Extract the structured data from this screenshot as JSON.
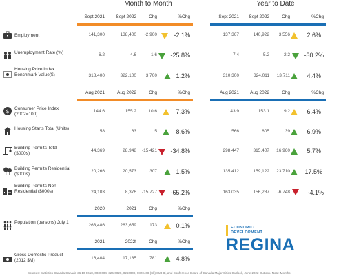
{
  "sections": {
    "month_title": "Month to Month",
    "year_title": "Year to Date"
  },
  "colors": {
    "orange": "#f28c28",
    "blue": "#1a6fb5",
    "green": "#4aa23c",
    "red": "#c8202c",
    "yellow": "#f2c12e"
  },
  "headers": {
    "h1": {
      "m1": "Sept 2021",
      "m2": "Sept 2022",
      "chg": "Chg",
      "pct": "%Chg",
      "y1": "Sept 2021",
      "y2": "Sept 2022",
      "ychg": "Chg",
      "ypct": "%Chg"
    },
    "h2": {
      "m1": "Aug 2021",
      "m2": "Aug 2022",
      "chg": "Chg",
      "pct": "%Chg",
      "y1": "Aug 2021",
      "y2": "Aug 2022",
      "ychg": "Chg",
      "ypct": "%Chg"
    },
    "h3": {
      "m1": "2020",
      "m2": "2021",
      "chg": "Chg",
      "pct": "%Chg"
    },
    "h4": {
      "m1": "2021",
      "m2": "2022f",
      "chg": "Chg",
      "pct": "%Chg"
    }
  },
  "rows": [
    {
      "label": "Employment",
      "icon": "briefcase-icon",
      "m": [
        "141,300",
        "138,400",
        "-2,900",
        "-2.1%"
      ],
      "m_arrow": "down-yellow",
      "y": [
        "137,367",
        "140,922",
        "3,556",
        "2.6%"
      ],
      "y_arrow": "up-yellow"
    },
    {
      "label": "Unemployment Rate (%)",
      "icon": "people-icon",
      "m": [
        "6.2",
        "4.6",
        "-1.6",
        "-25.8%"
      ],
      "m_arrow": "down-green",
      "y": [
        "7.4",
        "5.2",
        "-2.2",
        "-30.2%"
      ],
      "y_arrow": "down-green"
    },
    {
      "label": "Housing Price Index Benchmark Value($)",
      "icon": "cash-icon",
      "m": [
        "318,400",
        "322,100",
        "3,700",
        "1.2%"
      ],
      "m_arrow": "up-green",
      "y": [
        "310,300",
        "324,011",
        "13,711",
        "4.4%"
      ],
      "y_arrow": "up-green"
    },
    {
      "label": "Consumer Price Index (2002=100)",
      "icon": "dollar-coin-icon",
      "m": [
        "144.6",
        "155.2",
        "10.6",
        "7.3%"
      ],
      "m_arrow": "up-yellow",
      "y": [
        "143.9",
        "153.1",
        "9.2",
        "6.4%"
      ],
      "y_arrow": "up-yellow"
    },
    {
      "label": "Housing Starts Total (Units)",
      "icon": "house-icon",
      "m": [
        "58",
        "63",
        "5",
        "8.6%"
      ],
      "m_arrow": "up-green",
      "y": [
        "566",
        "605",
        "39",
        "6.9%"
      ],
      "y_arrow": "up-green"
    },
    {
      "label": "Building Permits Total ($000s)",
      "icon": "crane-icon",
      "m": [
        "44,369",
        "28,948",
        "-15,421",
        "-34.8%"
      ],
      "m_arrow": "down-red",
      "y": [
        "298,447",
        "315,407",
        "16,960",
        "5.7%"
      ],
      "y_arrow": "up-green"
    },
    {
      "label": "Building Permits Residential ($000s)",
      "icon": "trees-icon",
      "m": [
        "20,266",
        "20,573",
        "307",
        "1.5%"
      ],
      "m_arrow": "up-green",
      "y": [
        "135,412",
        "159,122",
        "23,710",
        "17.5%"
      ],
      "y_arrow": "up-green"
    },
    {
      "label": "Building Permits Non-Residential ($000s)",
      "icon": "buildings-icon",
      "m": [
        "24,103",
        "8,376",
        "-15,727",
        "-65.2%"
      ],
      "m_arrow": "down-red",
      "y": [
        "163,035",
        "156,287",
        "-6,748",
        "-4.1%"
      ],
      "y_arrow": "down-red"
    },
    {
      "label": "Population (persons) July 1",
      "icon": "population-icon",
      "m": [
        "263,486",
        "263,659",
        "173",
        "0.1%"
      ],
      "m_arrow": "up-yellow"
    },
    {
      "label": "Gross Domestic Product (2012 $M)",
      "icon": "money-icon",
      "m": [
        "16,404",
        "17,185",
        "781",
        "4.8%"
      ],
      "m_arrow": "up-green"
    }
  ],
  "logo": {
    "line1": "ECONOMIC",
    "line2": "DEVELOPMENT",
    "line3": "REGINA"
  },
  "source": "Sources: Statistics Canada Canada 36 10 0618, 0030604, 326-0020, 0260009, 0820408 (Sk) Stat Bl, and Conference Board of Canada Major Cities Outlook, June 2022 Outlook. Note: Months"
}
